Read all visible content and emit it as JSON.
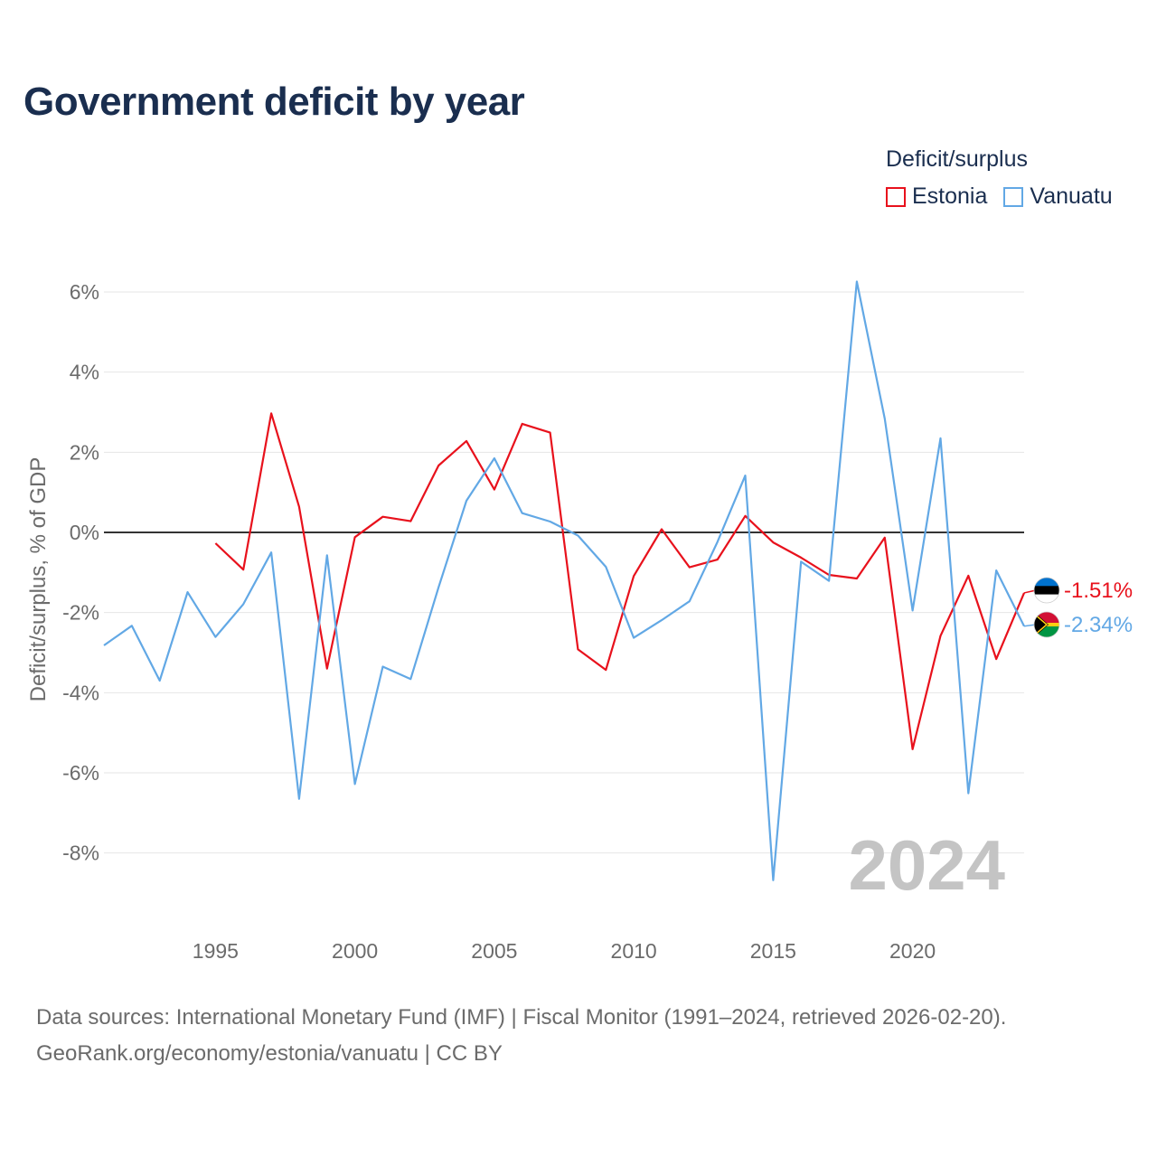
{
  "title": "Government deficit by year",
  "legend": {
    "title": "Deficit/surplus",
    "items": [
      {
        "name": "Estonia",
        "color": "#e8111c"
      },
      {
        "name": "Vanuatu",
        "color": "#62a8e5"
      }
    ]
  },
  "chart_data": {
    "type": "line",
    "title": "Government deficit by year",
    "ylabel": "Deficit/surplus, % of GDP",
    "xlabel": "",
    "xlim": [
      1991,
      2024
    ],
    "ylim": [
      -9.5,
      6.5
    ],
    "x_ticks": [
      1995,
      2000,
      2005,
      2010,
      2015,
      2020
    ],
    "y_ticks": [
      {
        "value": 6,
        "label": "6%"
      },
      {
        "value": 4,
        "label": "4%"
      },
      {
        "value": 2,
        "label": "2%"
      },
      {
        "value": 0,
        "label": "0%"
      },
      {
        "value": -2,
        "label": "-2%"
      },
      {
        "value": -4,
        "label": "-4%"
      },
      {
        "value": -6,
        "label": "-6%"
      },
      {
        "value": -8,
        "label": "-8%"
      }
    ],
    "zero_line": true,
    "grid": true,
    "watermark_year": "2024",
    "series": [
      {
        "name": "Estonia",
        "color": "#e8111c",
        "end_label": "-1.51%",
        "flag": "estonia-flag",
        "points": [
          [
            1995,
            -0.27
          ],
          [
            1996,
            -0.93
          ],
          [
            1997,
            2.97
          ],
          [
            1998,
            0.64
          ],
          [
            1999,
            -3.4
          ],
          [
            2000,
            -0.12
          ],
          [
            2001,
            0.39
          ],
          [
            2002,
            0.28
          ],
          [
            2003,
            1.67
          ],
          [
            2004,
            2.28
          ],
          [
            2005,
            1.07
          ],
          [
            2006,
            2.71
          ],
          [
            2007,
            2.49
          ],
          [
            2008,
            -2.92
          ],
          [
            2009,
            -3.43
          ],
          [
            2010,
            -1.09
          ],
          [
            2011,
            0.08
          ],
          [
            2012,
            -0.87
          ],
          [
            2013,
            -0.68
          ],
          [
            2014,
            0.41
          ],
          [
            2015,
            -0.25
          ],
          [
            2016,
            -0.63
          ],
          [
            2017,
            -1.06
          ],
          [
            2018,
            -1.15
          ],
          [
            2019,
            -0.13
          ],
          [
            2020,
            -5.41
          ],
          [
            2021,
            -2.58
          ],
          [
            2022,
            -1.08
          ],
          [
            2023,
            -3.16
          ],
          [
            2024,
            -1.51
          ]
        ]
      },
      {
        "name": "Vanuatu",
        "color": "#62a8e5",
        "end_label": "-2.34%",
        "flag": "vanuatu-flag",
        "points": [
          [
            1991,
            -2.82
          ],
          [
            1992,
            -2.33
          ],
          [
            1993,
            -3.7
          ],
          [
            1994,
            -1.49
          ],
          [
            1995,
            -2.61
          ],
          [
            1996,
            -1.79
          ],
          [
            1997,
            -0.5
          ],
          [
            1998,
            -6.65
          ],
          [
            1999,
            -0.57
          ],
          [
            2000,
            -6.28
          ],
          [
            2001,
            -3.35
          ],
          [
            2002,
            -3.66
          ],
          [
            2003,
            -1.37
          ],
          [
            2004,
            0.79
          ],
          [
            2005,
            1.85
          ],
          [
            2006,
            0.48
          ],
          [
            2007,
            0.27
          ],
          [
            2008,
            -0.08
          ],
          [
            2009,
            -0.86
          ],
          [
            2010,
            -2.63
          ],
          [
            2011,
            -2.19
          ],
          [
            2012,
            -1.72
          ],
          [
            2013,
            -0.24
          ],
          [
            2014,
            1.42
          ],
          [
            2015,
            -8.68
          ],
          [
            2016,
            -0.73
          ],
          [
            2017,
            -1.21
          ],
          [
            2018,
            6.26
          ],
          [
            2019,
            2.84
          ],
          [
            2020,
            -1.95
          ],
          [
            2021,
            2.35
          ],
          [
            2022,
            -6.51
          ],
          [
            2023,
            -0.95
          ],
          [
            2024,
            -2.34
          ]
        ]
      }
    ]
  },
  "source": {
    "line1": "Data sources: International Monetary Fund (IMF) | Fiscal Monitor (1991–2024, retrieved 2026-02-20).",
    "line2": "GeoRank.org/economy/estonia/vanuatu | CC BY"
  }
}
